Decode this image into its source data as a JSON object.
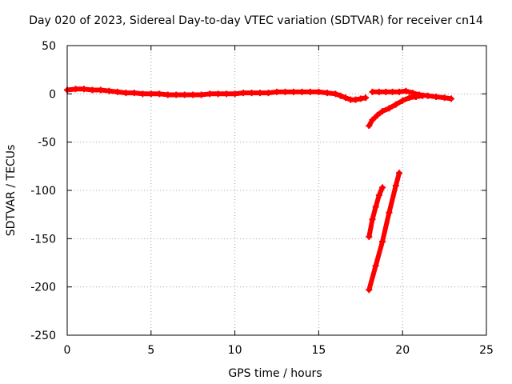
{
  "chart_data": {
    "type": "scatter",
    "title": "Day 020 of 2023, Sidereal Day-to-day VTEC variation (SDTVAR) for receiver cn14",
    "xlabel": "GPS time / hours",
    "ylabel": "SDTVAR / TECUs",
    "xlim": [
      0,
      25
    ],
    "ylim": [
      -250,
      50
    ],
    "x_ticks": [
      0,
      5,
      10,
      15,
      20,
      25
    ],
    "y_ticks": [
      -250,
      -200,
      -150,
      -100,
      -50,
      0,
      50
    ],
    "grid": true,
    "legend": "none",
    "series_color": "#ff0000",
    "series": [
      {
        "x": [
          0.0,
          0.5,
          1.0,
          1.5,
          2.0,
          2.5,
          3.0,
          3.5,
          4.0,
          4.5,
          5.0,
          5.5,
          6.0,
          6.5,
          7.0,
          7.5,
          8.0,
          8.5,
          9.0,
          9.5,
          10.0,
          10.5,
          11.0,
          11.5,
          12.0,
          12.5,
          13.0,
          13.5,
          14.0,
          14.5,
          15.0,
          15.5,
          16.0,
          16.3,
          16.6,
          16.9,
          17.2,
          17.5,
          17.8
        ],
        "y": [
          4,
          5,
          5,
          4,
          4,
          3,
          2,
          1,
          1,
          0,
          0,
          0,
          -1,
          -1,
          -1,
          -1,
          -1,
          0,
          0,
          0,
          0,
          1,
          1,
          1,
          1,
          2,
          2,
          2,
          2,
          2,
          2,
          1,
          0,
          -2,
          -4,
          -6,
          -6,
          -5,
          -4
        ]
      },
      {
        "x": [
          18.2,
          18.6,
          19.0,
          19.4,
          19.8,
          20.2,
          20.6,
          21.0,
          21.5,
          22.0,
          22.5,
          22.9
        ],
        "y": [
          2,
          2,
          2,
          2,
          2,
          3,
          1,
          -1,
          -2,
          -3,
          -4,
          -5
        ]
      },
      {
        "x": [
          18.0,
          18.2,
          18.5,
          18.8,
          19.2,
          19.6,
          20.0,
          20.4,
          20.8,
          21.2
        ],
        "y": [
          -33,
          -27,
          -22,
          -18,
          -15,
          -11,
          -7,
          -4,
          -3,
          -2
        ]
      },
      {
        "x": [
          18.0,
          18.2,
          18.4,
          18.6,
          18.8
        ],
        "y": [
          -148,
          -130,
          -117,
          -105,
          -97
        ]
      },
      {
        "x": [
          18.0,
          18.4,
          18.8,
          19.2,
          19.6,
          19.8
        ],
        "y": [
          -203,
          -178,
          -153,
          -123,
          -95,
          -82
        ]
      }
    ]
  }
}
